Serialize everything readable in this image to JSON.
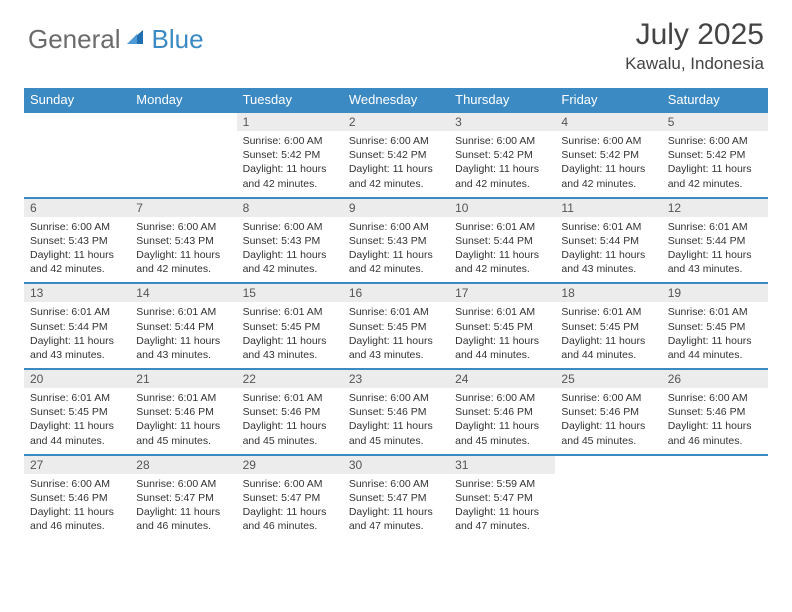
{
  "brand": {
    "general": "General",
    "blue": "Blue"
  },
  "title": {
    "month": "July 2025",
    "location": "Kawalu, Indonesia"
  },
  "colors": {
    "header_bg": "#3b8ac4",
    "daynum_bg": "#ececec",
    "border": "#3b8ac4",
    "text": "#333333",
    "logo_gray": "#6b6b6b",
    "logo_blue": "#3b8ac4"
  },
  "weekdays": [
    "Sunday",
    "Monday",
    "Tuesday",
    "Wednesday",
    "Thursday",
    "Friday",
    "Saturday"
  ],
  "weeks": [
    {
      "days": [
        {
          "num": "",
          "info": ""
        },
        {
          "num": "",
          "info": ""
        },
        {
          "num": "1",
          "info": "Sunrise: 6:00 AM\nSunset: 5:42 PM\nDaylight: 11 hours and 42 minutes."
        },
        {
          "num": "2",
          "info": "Sunrise: 6:00 AM\nSunset: 5:42 PM\nDaylight: 11 hours and 42 minutes."
        },
        {
          "num": "3",
          "info": "Sunrise: 6:00 AM\nSunset: 5:42 PM\nDaylight: 11 hours and 42 minutes."
        },
        {
          "num": "4",
          "info": "Sunrise: 6:00 AM\nSunset: 5:42 PM\nDaylight: 11 hours and 42 minutes."
        },
        {
          "num": "5",
          "info": "Sunrise: 6:00 AM\nSunset: 5:42 PM\nDaylight: 11 hours and 42 minutes."
        }
      ]
    },
    {
      "days": [
        {
          "num": "6",
          "info": "Sunrise: 6:00 AM\nSunset: 5:43 PM\nDaylight: 11 hours and 42 minutes."
        },
        {
          "num": "7",
          "info": "Sunrise: 6:00 AM\nSunset: 5:43 PM\nDaylight: 11 hours and 42 minutes."
        },
        {
          "num": "8",
          "info": "Sunrise: 6:00 AM\nSunset: 5:43 PM\nDaylight: 11 hours and 42 minutes."
        },
        {
          "num": "9",
          "info": "Sunrise: 6:00 AM\nSunset: 5:43 PM\nDaylight: 11 hours and 42 minutes."
        },
        {
          "num": "10",
          "info": "Sunrise: 6:01 AM\nSunset: 5:44 PM\nDaylight: 11 hours and 42 minutes."
        },
        {
          "num": "11",
          "info": "Sunrise: 6:01 AM\nSunset: 5:44 PM\nDaylight: 11 hours and 43 minutes."
        },
        {
          "num": "12",
          "info": "Sunrise: 6:01 AM\nSunset: 5:44 PM\nDaylight: 11 hours and 43 minutes."
        }
      ]
    },
    {
      "days": [
        {
          "num": "13",
          "info": "Sunrise: 6:01 AM\nSunset: 5:44 PM\nDaylight: 11 hours and 43 minutes."
        },
        {
          "num": "14",
          "info": "Sunrise: 6:01 AM\nSunset: 5:44 PM\nDaylight: 11 hours and 43 minutes."
        },
        {
          "num": "15",
          "info": "Sunrise: 6:01 AM\nSunset: 5:45 PM\nDaylight: 11 hours and 43 minutes."
        },
        {
          "num": "16",
          "info": "Sunrise: 6:01 AM\nSunset: 5:45 PM\nDaylight: 11 hours and 43 minutes."
        },
        {
          "num": "17",
          "info": "Sunrise: 6:01 AM\nSunset: 5:45 PM\nDaylight: 11 hours and 44 minutes."
        },
        {
          "num": "18",
          "info": "Sunrise: 6:01 AM\nSunset: 5:45 PM\nDaylight: 11 hours and 44 minutes."
        },
        {
          "num": "19",
          "info": "Sunrise: 6:01 AM\nSunset: 5:45 PM\nDaylight: 11 hours and 44 minutes."
        }
      ]
    },
    {
      "days": [
        {
          "num": "20",
          "info": "Sunrise: 6:01 AM\nSunset: 5:45 PM\nDaylight: 11 hours and 44 minutes."
        },
        {
          "num": "21",
          "info": "Sunrise: 6:01 AM\nSunset: 5:46 PM\nDaylight: 11 hours and 45 minutes."
        },
        {
          "num": "22",
          "info": "Sunrise: 6:01 AM\nSunset: 5:46 PM\nDaylight: 11 hours and 45 minutes."
        },
        {
          "num": "23",
          "info": "Sunrise: 6:00 AM\nSunset: 5:46 PM\nDaylight: 11 hours and 45 minutes."
        },
        {
          "num": "24",
          "info": "Sunrise: 6:00 AM\nSunset: 5:46 PM\nDaylight: 11 hours and 45 minutes."
        },
        {
          "num": "25",
          "info": "Sunrise: 6:00 AM\nSunset: 5:46 PM\nDaylight: 11 hours and 45 minutes."
        },
        {
          "num": "26",
          "info": "Sunrise: 6:00 AM\nSunset: 5:46 PM\nDaylight: 11 hours and 46 minutes."
        }
      ]
    },
    {
      "days": [
        {
          "num": "27",
          "info": "Sunrise: 6:00 AM\nSunset: 5:46 PM\nDaylight: 11 hours and 46 minutes."
        },
        {
          "num": "28",
          "info": "Sunrise: 6:00 AM\nSunset: 5:47 PM\nDaylight: 11 hours and 46 minutes."
        },
        {
          "num": "29",
          "info": "Sunrise: 6:00 AM\nSunset: 5:47 PM\nDaylight: 11 hours and 46 minutes."
        },
        {
          "num": "30",
          "info": "Sunrise: 6:00 AM\nSunset: 5:47 PM\nDaylight: 11 hours and 47 minutes."
        },
        {
          "num": "31",
          "info": "Sunrise: 5:59 AM\nSunset: 5:47 PM\nDaylight: 11 hours and 47 minutes."
        },
        {
          "num": "",
          "info": ""
        },
        {
          "num": "",
          "info": ""
        }
      ]
    }
  ]
}
